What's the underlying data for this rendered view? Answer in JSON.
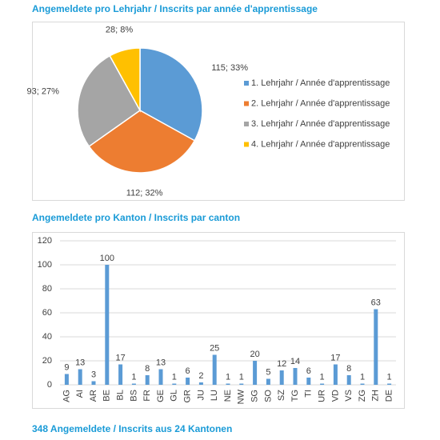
{
  "chart_data": [
    {
      "type": "pie",
      "title": "Angemeldete pro Lehrjahr / Inscrits par année d'apprentissage",
      "categories": [
        "1. Lehrjahr / Année d'apprentissage",
        "2. Lehrjahr / Année d'apprentissage",
        "3. Lehrjahr / Année d'apprentissage",
        "4. Lehrjahr / Année d'apprentissage"
      ],
      "values": [
        115,
        112,
        93,
        28
      ],
      "value_labels": [
        "115; 33%",
        "112; 32%",
        "93; 27%",
        "28; 8%"
      ],
      "colors": [
        "#5b9bd5",
        "#ed7d31",
        "#a5a5a5",
        "#ffc000"
      ],
      "legend": "right"
    },
    {
      "type": "bar",
      "title": "Angemeldete pro Kanton / Inscrits par canton",
      "categories": [
        "AG",
        "AI",
        "AR",
        "BE",
        "BL",
        "BS",
        "FR",
        "GE",
        "GL",
        "GR",
        "JU",
        "LU",
        "NE",
        "NW",
        "SG",
        "SO",
        "SZ",
        "TG",
        "TI",
        "UR",
        "VD",
        "VS",
        "ZG",
        "ZH",
        "DE"
      ],
      "values": [
        9,
        13,
        3,
        100,
        17,
        1,
        8,
        13,
        1,
        6,
        2,
        25,
        1,
        1,
        20,
        5,
        12,
        14,
        6,
        1,
        17,
        8,
        1,
        63,
        1
      ],
      "color": "#5b9bd5",
      "ylim": [
        0,
        120
      ],
      "yticks": [
        0,
        20,
        40,
        60,
        80,
        100,
        120
      ],
      "grid": true
    }
  ],
  "footer": "348 Angemeldete / Inscrits aus 24 Kantonen"
}
